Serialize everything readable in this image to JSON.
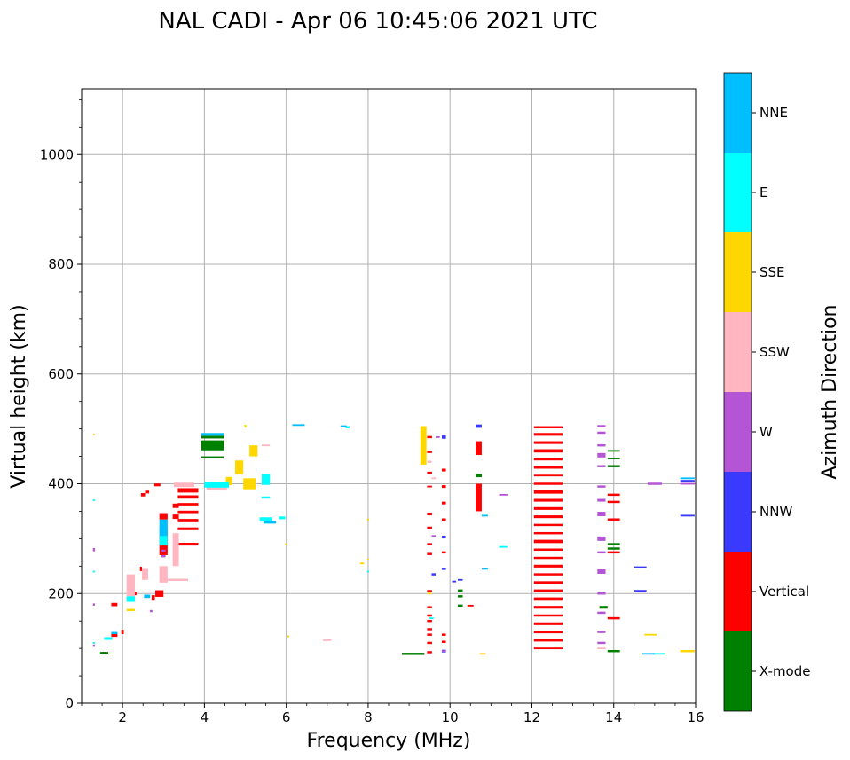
{
  "chart_data": {
    "type": "scatter",
    "title": "NAL CADI - Apr 06 10:45:06 2021 UTC",
    "xlabel": "Frequency (MHz)",
    "ylabel": "Virtual height (km)",
    "xlim": [
      1,
      16
    ],
    "ylim": [
      0,
      1120
    ],
    "xticks": [
      2,
      4,
      6,
      8,
      10,
      12,
      14,
      16
    ],
    "yticks": [
      0,
      200,
      400,
      600,
      800,
      1000
    ],
    "grid": true,
    "colorbar": {
      "title": "Azimuth Direction",
      "categories": [
        {
          "name": "X-mode",
          "color": "#008000"
        },
        {
          "name": "Vertical",
          "color": "#ff0000"
        },
        {
          "name": "NNW",
          "color": "#3a3aff"
        },
        {
          "name": "W",
          "color": "#b455d6"
        },
        {
          "name": "SSW",
          "color": "#ffb6c1"
        },
        {
          "name": "SSE",
          "color": "#ffd700"
        },
        {
          "name": "E",
          "color": "#00ffff"
        },
        {
          "name": "NNE",
          "color": "#00bfff"
        }
      ]
    },
    "series": [
      {
        "name": "Vertical",
        "points": [
          [
            1.55,
            92,
            0.1,
            3
          ],
          [
            1.8,
            125,
            0.15,
            8
          ],
          [
            1.8,
            180,
            0.15,
            6
          ],
          [
            2.0,
            130,
            0.06,
            8
          ],
          [
            2.3,
            200,
            0.08,
            6
          ],
          [
            2.45,
            245,
            0.05,
            8
          ],
          [
            2.5,
            380,
            0.1,
            6
          ],
          [
            2.6,
            385,
            0.1,
            5
          ],
          [
            2.75,
            192,
            0.08,
            10
          ],
          [
            2.9,
            200,
            0.2,
            12
          ],
          [
            2.85,
            398,
            0.15,
            5
          ],
          [
            3.0,
            290,
            0.2,
            40
          ],
          [
            3.0,
            340,
            0.2,
            10
          ],
          [
            3.3,
            340,
            0.15,
            8
          ],
          [
            3.3,
            360,
            0.15,
            8
          ],
          [
            3.6,
            290,
            0.5,
            5
          ],
          [
            3.6,
            318,
            0.5,
            5
          ],
          [
            3.6,
            333,
            0.5,
            6
          ],
          [
            3.6,
            348,
            0.5,
            6
          ],
          [
            3.6,
            362,
            0.5,
            6
          ],
          [
            3.6,
            376,
            0.5,
            6
          ],
          [
            3.6,
            388,
            0.5,
            8
          ],
          [
            9.5,
            93,
            0.12,
            4
          ],
          [
            9.5,
            110,
            0.12,
            4
          ],
          [
            9.5,
            125,
            0.12,
            4
          ],
          [
            9.5,
            135,
            0.12,
            4
          ],
          [
            9.5,
            150,
            0.12,
            4
          ],
          [
            9.5,
            160,
            0.12,
            4
          ],
          [
            9.5,
            175,
            0.12,
            4
          ],
          [
            9.5,
            205,
            0.12,
            3
          ],
          [
            9.5,
            272,
            0.12,
            4
          ],
          [
            9.5,
            290,
            0.12,
            4
          ],
          [
            9.5,
            320,
            0.12,
            4
          ],
          [
            9.5,
            345,
            0.12,
            5
          ],
          [
            9.5,
            395,
            0.12,
            3
          ],
          [
            9.5,
            420,
            0.12,
            4
          ],
          [
            9.5,
            458,
            0.12,
            4
          ],
          [
            9.5,
            485,
            0.12,
            4
          ],
          [
            9.85,
            112,
            0.1,
            4
          ],
          [
            9.85,
            125,
            0.1,
            4
          ],
          [
            9.85,
            275,
            0.1,
            4
          ],
          [
            9.85,
            335,
            0.1,
            4
          ],
          [
            9.85,
            365,
            0.1,
            5
          ],
          [
            9.85,
            395,
            0.1,
            5
          ],
          [
            9.85,
            425,
            0.1,
            5
          ],
          [
            10.7,
            375,
            0.15,
            50
          ],
          [
            10.7,
            465,
            0.15,
            25
          ],
          [
            10.5,
            178,
            0.15,
            3
          ],
          [
            12.4,
            100,
            0.7,
            3
          ],
          [
            12.4,
            115,
            0.7,
            5
          ],
          [
            12.4,
            130,
            0.7,
            5
          ],
          [
            12.4,
            145,
            0.7,
            5
          ],
          [
            12.4,
            160,
            0.7,
            4
          ],
          [
            12.4,
            175,
            0.7,
            5
          ],
          [
            12.4,
            190,
            0.7,
            6
          ],
          [
            12.4,
            205,
            0.7,
            5
          ],
          [
            12.4,
            220,
            0.7,
            5
          ],
          [
            12.4,
            235,
            0.7,
            4
          ],
          [
            12.4,
            250,
            0.7,
            5
          ],
          [
            12.4,
            265,
            0.7,
            4
          ],
          [
            12.4,
            280,
            0.7,
            4
          ],
          [
            12.4,
            295,
            0.7,
            6
          ],
          [
            12.4,
            310,
            0.7,
            4
          ],
          [
            12.4,
            325,
            0.7,
            4
          ],
          [
            12.4,
            340,
            0.7,
            5
          ],
          [
            12.4,
            355,
            0.7,
            5
          ],
          [
            12.4,
            370,
            0.7,
            5
          ],
          [
            12.4,
            385,
            0.7,
            6
          ],
          [
            12.4,
            400,
            0.7,
            4
          ],
          [
            12.4,
            415,
            0.7,
            3
          ],
          [
            12.4,
            430,
            0.7,
            5
          ],
          [
            12.4,
            445,
            0.7,
            5
          ],
          [
            12.4,
            460,
            0.7,
            6
          ],
          [
            12.4,
            475,
            0.7,
            5
          ],
          [
            12.4,
            490,
            0.7,
            5
          ],
          [
            12.4,
            503,
            0.7,
            4
          ],
          [
            14.0,
            155,
            0.3,
            4
          ],
          [
            14.0,
            275,
            0.3,
            4
          ],
          [
            14.0,
            335,
            0.3,
            4
          ],
          [
            14.0,
            367,
            0.3,
            4
          ],
          [
            14.0,
            380,
            0.3,
            4
          ]
        ]
      },
      {
        "name": "X-mode",
        "points": [
          [
            1.55,
            92,
            0.2,
            3
          ],
          [
            4.2,
            448,
            0.55,
            4
          ],
          [
            4.2,
            470,
            0.55,
            18
          ],
          [
            4.2,
            485,
            0.55,
            5
          ],
          [
            9.1,
            90,
            0.55,
            4
          ],
          [
            10.25,
            205,
            0.12,
            5
          ],
          [
            10.25,
            195,
            0.12,
            4
          ],
          [
            10.25,
            178,
            0.12,
            4
          ],
          [
            10.7,
            415,
            0.15,
            6
          ],
          [
            13.75,
            175,
            0.2,
            5
          ],
          [
            14.0,
            95,
            0.3,
            4
          ],
          [
            14.0,
            282,
            0.3,
            4
          ],
          [
            14.0,
            290,
            0.3,
            4
          ],
          [
            14.0,
            432,
            0.3,
            4
          ],
          [
            14.0,
            446,
            0.3,
            3
          ],
          [
            14.0,
            460,
            0.3,
            3
          ]
        ]
      },
      {
        "name": "NNW",
        "points": [
          [
            9.85,
            95,
            0.1,
            5
          ],
          [
            9.85,
            303,
            0.1,
            5
          ],
          [
            9.85,
            485,
            0.1,
            6
          ],
          [
            9.85,
            245,
            0.1,
            4
          ],
          [
            9.6,
            235,
            0.1,
            4
          ],
          [
            10.25,
            225,
            0.12,
            3
          ],
          [
            10.7,
            505,
            0.15,
            6
          ],
          [
            10.1,
            222,
            0.1,
            3
          ],
          [
            14.65,
            205,
            0.3,
            3
          ],
          [
            14.65,
            248,
            0.3,
            3
          ],
          [
            15.8,
            342,
            0.35,
            3
          ],
          [
            15.8,
            405,
            0.35,
            4
          ]
        ]
      },
      {
        "name": "W",
        "points": [
          [
            1.3,
            105,
            0.05,
            4
          ],
          [
            1.3,
            180,
            0.05,
            4
          ],
          [
            1.3,
            280,
            0.05,
            6
          ],
          [
            2.7,
            168,
            0.06,
            4
          ],
          [
            3.0,
            268,
            0.1,
            4
          ],
          [
            3.0,
            278,
            0.1,
            4
          ],
          [
            9.6,
            305,
            0.1,
            3
          ],
          [
            9.85,
            95,
            0.1,
            3
          ],
          [
            13.7,
            110,
            0.2,
            4
          ],
          [
            13.7,
            130,
            0.2,
            4
          ],
          [
            13.7,
            165,
            0.2,
            4
          ],
          [
            13.7,
            200,
            0.2,
            4
          ],
          [
            13.7,
            240,
            0.2,
            8
          ],
          [
            13.7,
            275,
            0.2,
            4
          ],
          [
            13.7,
            300,
            0.2,
            8
          ],
          [
            13.7,
            345,
            0.2,
            8
          ],
          [
            13.7,
            370,
            0.2,
            5
          ],
          [
            13.7,
            395,
            0.2,
            4
          ],
          [
            13.7,
            432,
            0.2,
            4
          ],
          [
            13.7,
            452,
            0.2,
            8
          ],
          [
            13.7,
            470,
            0.2,
            4
          ],
          [
            13.7,
            493,
            0.2,
            4
          ],
          [
            13.7,
            505,
            0.2,
            4
          ],
          [
            11.3,
            380,
            0.2,
            3
          ],
          [
            15.0,
            400,
            0.35,
            4
          ],
          [
            15.8,
            400,
            0.35,
            3
          ],
          [
            9.7,
            485,
            0.1,
            3
          ]
        ]
      },
      {
        "name": "SSW",
        "points": [
          [
            2.2,
            215,
            0.2,
            40
          ],
          [
            2.55,
            235,
            0.15,
            20
          ],
          [
            3.0,
            235,
            0.2,
            30
          ],
          [
            3.3,
            225,
            0.6,
            4
          ],
          [
            3.3,
            280,
            0.15,
            60
          ],
          [
            3.5,
            398,
            0.5,
            8
          ],
          [
            4.3,
            395,
            0.5,
            12
          ],
          [
            5.5,
            470,
            0.2,
            3
          ],
          [
            7.0,
            115,
            0.2,
            3
          ],
          [
            9.6,
            410,
            0.1,
            3
          ],
          [
            9.5,
            440,
            0.1,
            4
          ],
          [
            13.7,
            100,
            0.2,
            3
          ]
        ]
      },
      {
        "name": "SSE",
        "points": [
          [
            1.3,
            490,
            0.04,
            3
          ],
          [
            2.2,
            170,
            0.2,
            4
          ],
          [
            4.6,
            405,
            0.15,
            15
          ],
          [
            4.85,
            430,
            0.2,
            25
          ],
          [
            5.1,
            400,
            0.3,
            20
          ],
          [
            5.2,
            460,
            0.2,
            20
          ],
          [
            5.0,
            505,
            0.05,
            5
          ],
          [
            6.0,
            290,
            0.06,
            3
          ],
          [
            7.85,
            255,
            0.1,
            3
          ],
          [
            8.0,
            335,
            0.05,
            3
          ],
          [
            9.35,
            470,
            0.15,
            70
          ],
          [
            9.5,
            200,
            0.1,
            3
          ],
          [
            10.8,
            90,
            0.15,
            3
          ],
          [
            14.9,
            125,
            0.3,
            3
          ],
          [
            15.8,
            95,
            0.35,
            4
          ],
          [
            6.05,
            122,
            0.05,
            3
          ],
          [
            8.0,
            262,
            0.05,
            3
          ]
        ]
      },
      {
        "name": "E",
        "points": [
          [
            1.3,
            110,
            0.05,
            3
          ],
          [
            1.3,
            240,
            0.05,
            3
          ],
          [
            1.3,
            370,
            0.05,
            3
          ],
          [
            1.65,
            118,
            0.2,
            5
          ],
          [
            2.2,
            190,
            0.2,
            10
          ],
          [
            3.0,
            305,
            0.2,
            35
          ],
          [
            4.3,
            398,
            0.6,
            10
          ],
          [
            5.5,
            408,
            0.2,
            20
          ],
          [
            5.5,
            375,
            0.2,
            4
          ],
          [
            5.5,
            335,
            0.3,
            8
          ],
          [
            5.9,
            338,
            0.15,
            5
          ],
          [
            7.5,
            503,
            0.1,
            4
          ],
          [
            8.0,
            240,
            0.05,
            3
          ],
          [
            9.55,
            155,
            0.1,
            3
          ],
          [
            11.3,
            285,
            0.2,
            3
          ],
          [
            15.1,
            90,
            0.3,
            3
          ]
        ]
      },
      {
        "name": "NNE",
        "points": [
          [
            1.8,
            128,
            0.15,
            4
          ],
          [
            2.6,
            195,
            0.15,
            6
          ],
          [
            3.0,
            320,
            0.2,
            30
          ],
          [
            4.2,
            490,
            0.55,
            5
          ],
          [
            5.6,
            330,
            0.3,
            5
          ],
          [
            6.3,
            507,
            0.3,
            3
          ],
          [
            7.4,
            505,
            0.15,
            3
          ],
          [
            10.85,
            342,
            0.15,
            3
          ],
          [
            10.85,
            245,
            0.15,
            3
          ],
          [
            14.85,
            90,
            0.3,
            3
          ],
          [
            15.8,
            410,
            0.35,
            3
          ]
        ]
      }
    ]
  }
}
